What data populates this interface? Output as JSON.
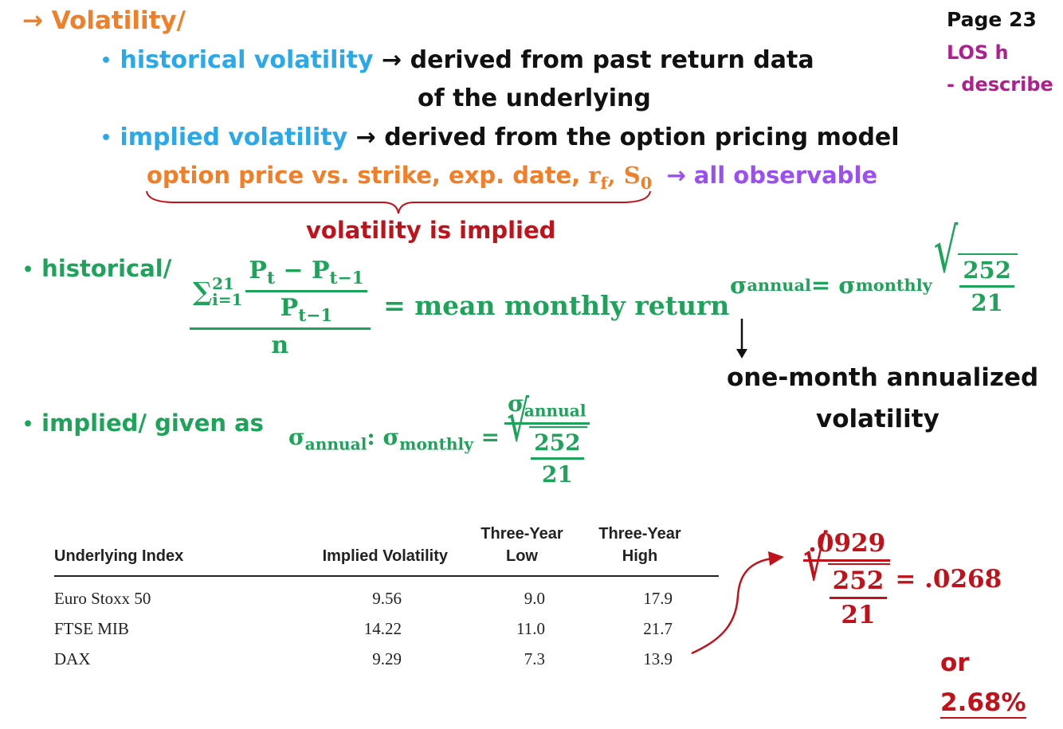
{
  "page_ref": {
    "page": "Page 23",
    "los": "LOS h",
    "verb": "- describe"
  },
  "heading": {
    "arrow": "→",
    "title": "Volatility/"
  },
  "bullets": {
    "historical": {
      "term": "historical volatility",
      "arrow": "→",
      "desc1": "derived from past return data",
      "desc2": "of the underlying"
    },
    "implied": {
      "term": "implied volatility",
      "arrow": "→",
      "desc": "derived from the option pricing model"
    },
    "inputs": {
      "text": "option price vs. strike, exp. date, ",
      "rf": "r",
      "rf_sub": "f",
      "s0": "S",
      "s0_sub": "0",
      "sep": ", ",
      "arrow": "→",
      "observable": "all observable"
    },
    "brace_note": "volatility is implied"
  },
  "historical_formula": {
    "label": "historical/",
    "sum": "∑",
    "sum_sup": "21",
    "sum_sub": "i=1",
    "num": "P",
    "num_sub": "t",
    "minus": " − P",
    "minus_sub": "t−1",
    "den": "P",
    "den_sub": "t−1",
    "n": "n",
    "result": "= mean monthly return"
  },
  "annual_formula": {
    "sigma": "σ",
    "annual": "annual",
    "eq": " = σ",
    "monthly": "monthly",
    "num": "252",
    "den": "21",
    "note1": "one-month annualized",
    "note2": "volatility"
  },
  "implied_formula": {
    "label": "implied/  given as",
    "sigma": "σ",
    "annual": "annual",
    "colon": ": σ",
    "monthly": "monthly",
    "eq": " =",
    "top": "σ",
    "top_sub": "annual",
    "num": "252",
    "den": "21"
  },
  "table": {
    "headers": [
      "Underlying Index",
      "Implied Volatility",
      "Three-Year\nLow",
      "Three-Year\nHigh"
    ],
    "header_low_1": "Three-Year",
    "header_low_2": "Low",
    "header_high_1": "Three-Year",
    "header_high_2": "High",
    "rows": [
      {
        "index": "Euro Stoxx 50",
        "implied": "9.56",
        "low": "9.0",
        "high": "17.9"
      },
      {
        "index": "FTSE MIB",
        "implied": "14.22",
        "low": "11.0",
        "high": "21.7"
      },
      {
        "index": "DAX",
        "implied": "9.29",
        "low": "7.3",
        "high": "13.9"
      }
    ]
  },
  "calculation": {
    "num": ".0929",
    "sqrt_num": "252",
    "sqrt_den": "21",
    "result": "= .0268",
    "or": "or",
    "percent": "2.68%"
  },
  "colors": {
    "orange": "#f07f2a",
    "blue": "#2aa8e8",
    "green": "#1ea35a",
    "violet": "#9b4ff0",
    "red": "#c0121b",
    "magenta": "#b01f8f"
  }
}
